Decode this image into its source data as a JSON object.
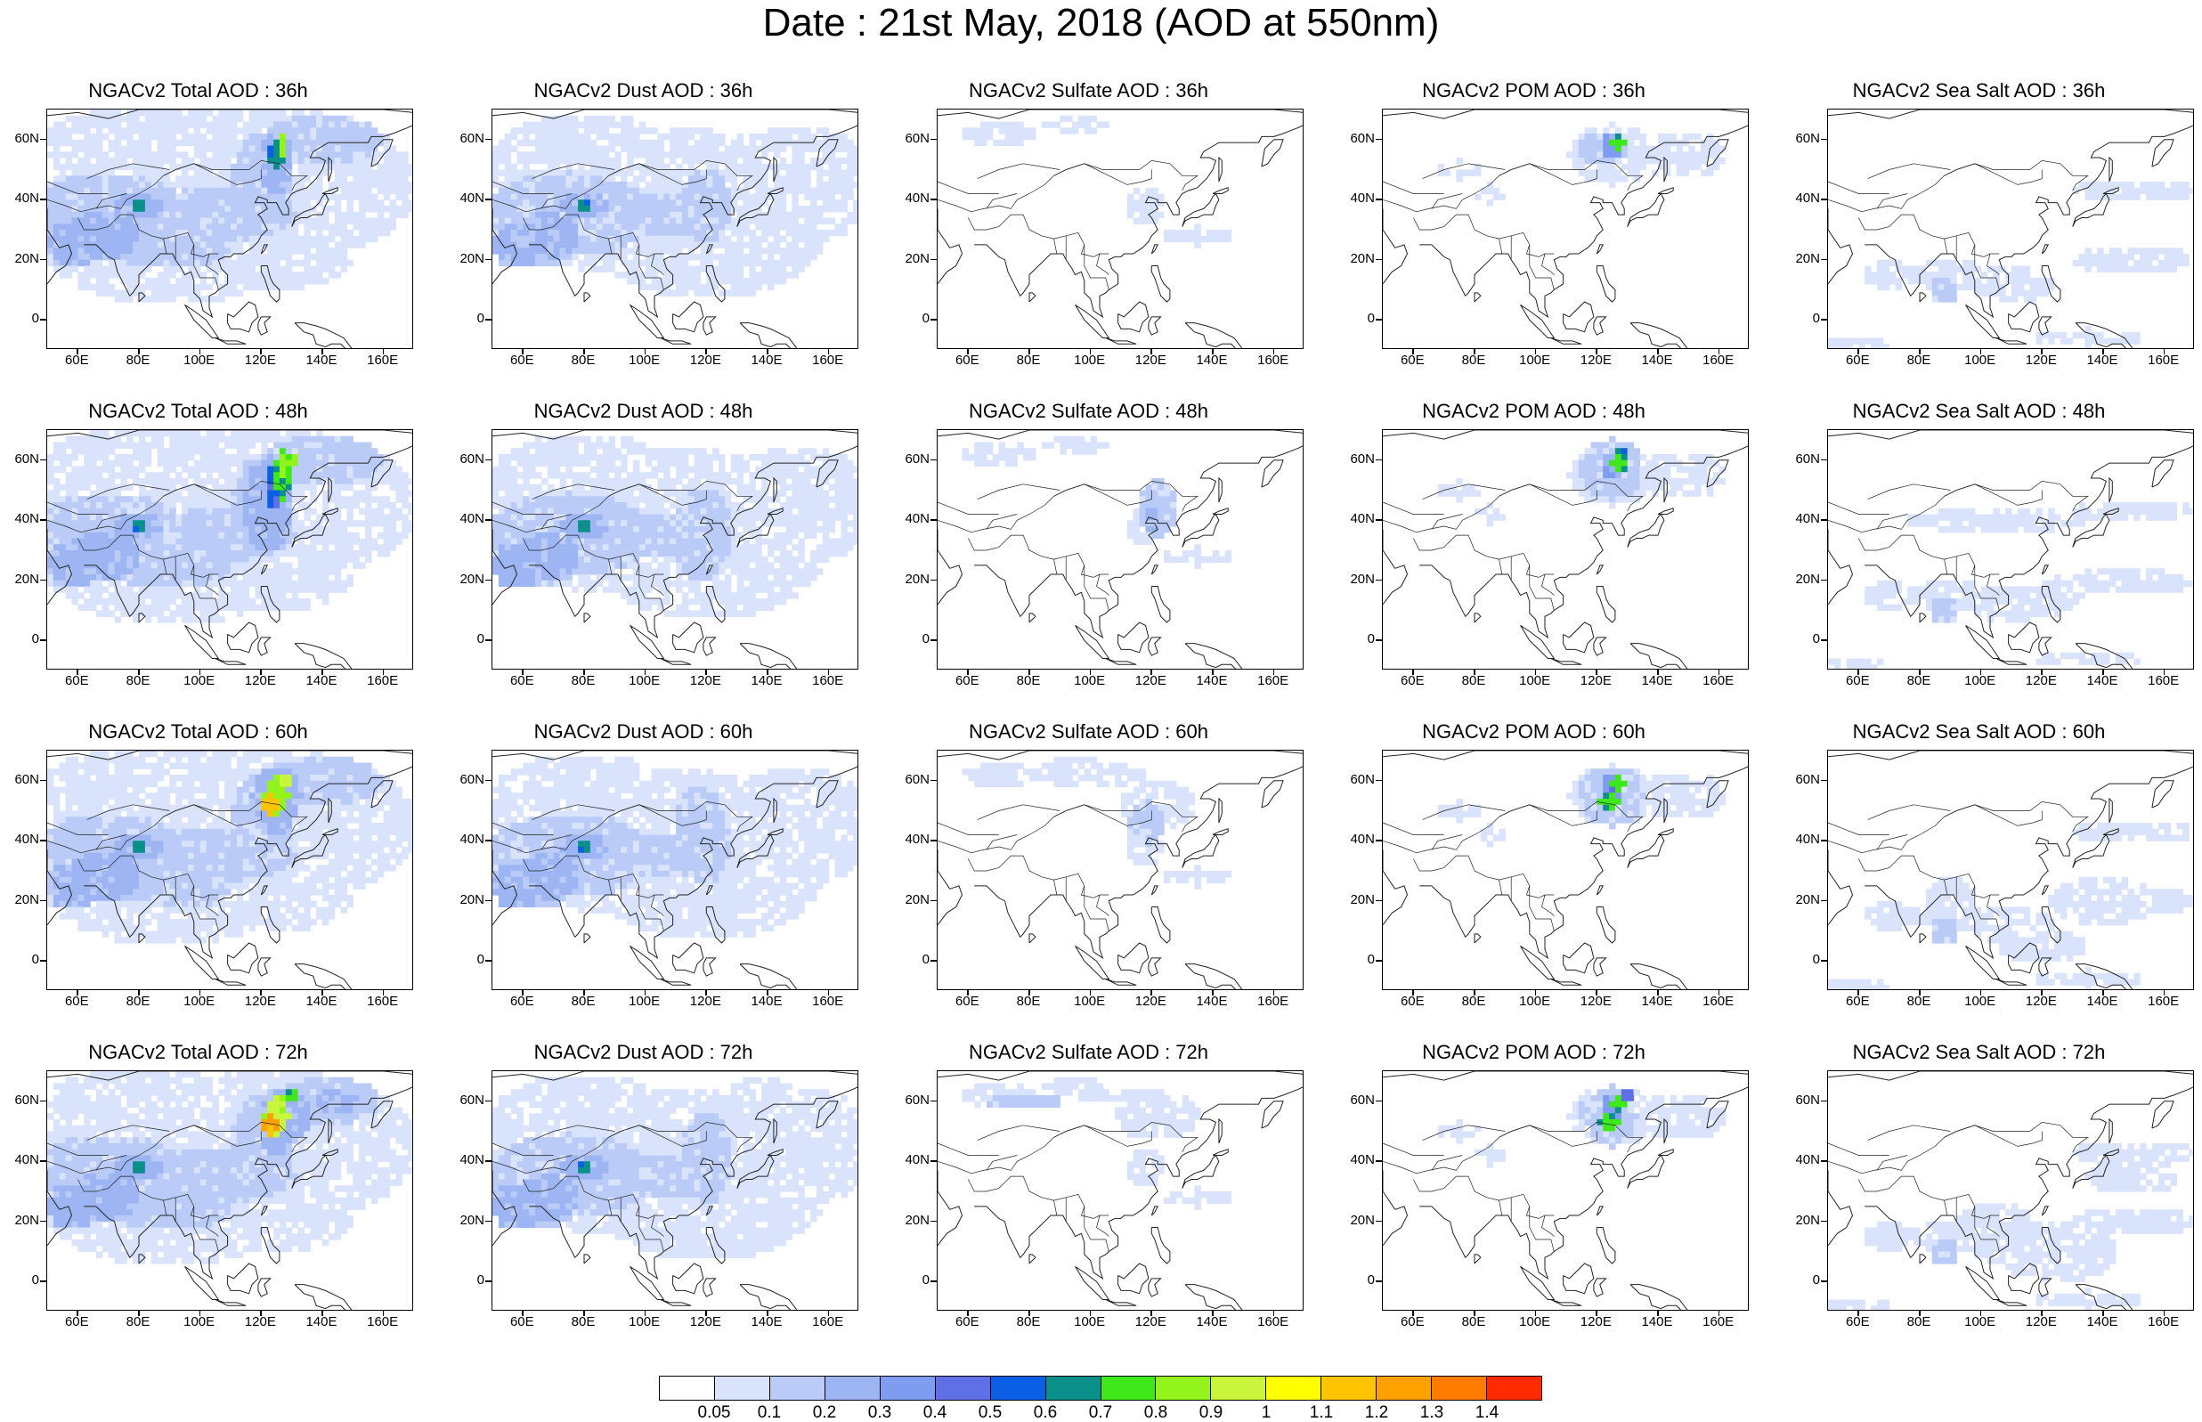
{
  "figure": {
    "title": "Date : 21st May, 2018 (AOD at 550nm)"
  },
  "axes": {
    "lon_ticks": [
      "60E",
      "80E",
      "100E",
      "120E",
      "140E",
      "160E"
    ],
    "lat_ticks": [
      "60N",
      "40N",
      "20N",
      "0"
    ],
    "lon_range": [
      50,
      170
    ],
    "lat_range": [
      -10,
      70
    ]
  },
  "species": [
    "Total",
    "Dust",
    "Sulfate",
    "POM",
    "Sea Salt"
  ],
  "forecast_hours": [
    "36h",
    "48h",
    "60h",
    "72h"
  ],
  "panels": [
    [
      "NGACv2 Total AOD : 36h",
      "NGACv2 Dust AOD : 36h",
      "NGACv2 Sulfate AOD : 36h",
      "NGACv2 POM AOD : 36h",
      "NGACv2 Sea Salt AOD : 36h"
    ],
    [
      "NGACv2 Total AOD : 48h",
      "NGACv2 Dust AOD : 48h",
      "NGACv2 Sulfate AOD : 48h",
      "NGACv2 POM AOD : 48h",
      "NGACv2 Sea Salt AOD : 48h"
    ],
    [
      "NGACv2 Total AOD : 60h",
      "NGACv2 Dust AOD : 60h",
      "NGACv2 Sulfate AOD : 60h",
      "NGACv2 POM AOD : 60h",
      "NGACv2 Sea Salt AOD : 60h"
    ],
    [
      "NGACv2 Total AOD : 72h",
      "NGACv2 Dust AOD : 72h",
      "NGACv2 Sulfate AOD : 72h",
      "NGACv2 POM AOD : 72h",
      "NGACv2 Sea Salt  AOD : 72h"
    ]
  ],
  "colorbar": {
    "labels": [
      "0.05",
      "0.1",
      "0.2",
      "0.3",
      "0.4",
      "0.5",
      "0.6",
      "0.7",
      "0.8",
      "0.9",
      "1",
      "1.1",
      "1.2",
      "1.3",
      "1.4"
    ],
    "colors": [
      "#ffffff",
      "#d9e3fb",
      "#b9cbf6",
      "#9db6f3",
      "#7f9df0",
      "#5f6fe6",
      "#0b5fe4",
      "#0b8f8a",
      "#3fe81a",
      "#92f41a",
      "#c9f53c",
      "#ffff00",
      "#ffc400",
      "#ffa200",
      "#ff7b00",
      "#ff2a00"
    ]
  }
}
